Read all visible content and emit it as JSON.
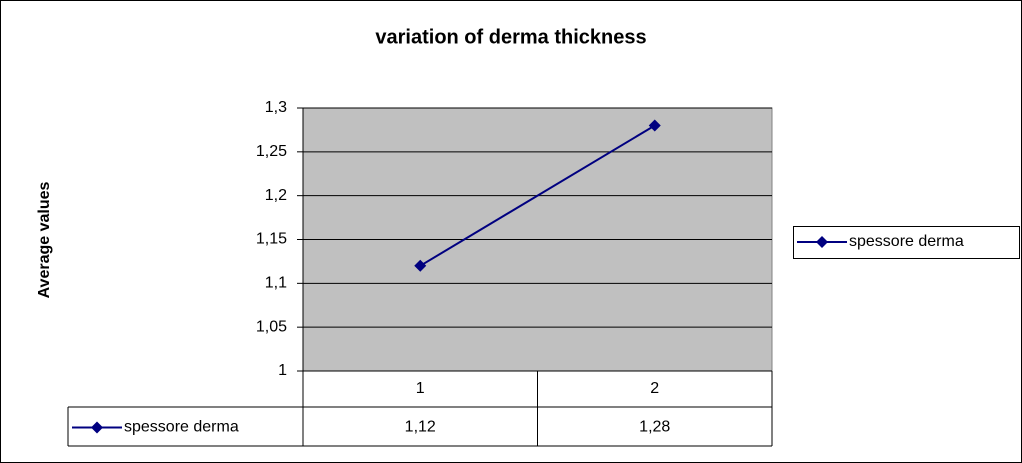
{
  "chart_data": {
    "type": "line",
    "title": "variation of derma thickness",
    "y_label": "Average values",
    "categories": [
      "1",
      "2"
    ],
    "series": [
      {
        "name": "spessore derma",
        "color": "#000080",
        "values": [
          1.12,
          1.28
        ],
        "value_labels": [
          "1,12",
          "1,28"
        ]
      }
    ],
    "ylim": [
      1,
      1.3
    ],
    "yticks": [
      1,
      {
        "value": 1.05,
        "label": "1,05"
      },
      {
        "value": 1.1,
        "label": "1,1"
      },
      {
        "value": 1.15,
        "label": "1,15"
      },
      {
        "value": 1.2,
        "label": "1,2"
      },
      {
        "value": 1.25,
        "label": "1,25"
      },
      {
        "value": 1.3,
        "label": "1,3"
      }
    ],
    "grid": true,
    "legend": "right",
    "plot_background": "#c0c0c0"
  }
}
